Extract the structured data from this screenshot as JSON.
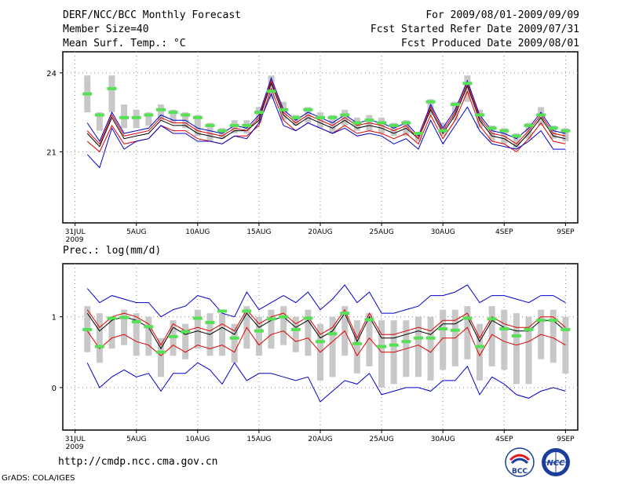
{
  "header": {
    "title": "DERF/NCC/BCC Monthly Forecast",
    "member_size": "Member Size=40",
    "variable": "Mean Surf. Temp.: °C",
    "period": "For 2009/08/01-2009/09/09",
    "started": "Fcst Started Refer Date 2009/07/31",
    "produced": "Fcst Produced Date 2009/08/01"
  },
  "footer": {
    "url": "http://cmdp.ncc.cma.gov.cn",
    "grads": "GrADS: COLA/IGES",
    "logo_bcc": "BCC",
    "logo_ncc": "NCC"
  },
  "colors": {
    "ensemble_max_min": "#0000cc",
    "ensemble_spread": "#dd0000",
    "ensemble_mean": "#000000",
    "box": "#c8c8c8",
    "observed_marker": "#55e055",
    "grid": "#888888"
  },
  "chart_data": [
    {
      "type": "line",
      "title": "Mean Surf. Temp.: °C",
      "xlabel": "",
      "ylabel": "",
      "ylim": [
        18.3,
        24.8
      ],
      "yticks": [
        21,
        24
      ],
      "ytick_labels": [
        "21",
        "24"
      ],
      "x": [
        1,
        2,
        3,
        4,
        5,
        6,
        7,
        8,
        9,
        10,
        11,
        12,
        13,
        14,
        15,
        16,
        17,
        18,
        19,
        20,
        21,
        22,
        23,
        24,
        25,
        26,
        27,
        28,
        29,
        30,
        31,
        32,
        33,
        34,
        35,
        36,
        37,
        38,
        39,
        40
      ],
      "xticks": [
        0,
        5,
        10,
        15,
        20,
        25,
        30,
        35,
        40
      ],
      "xtick_labels": [
        "31JUL\n2009",
        "5AUG",
        "10AUG",
        "15AUG",
        "20AUG",
        "25AUG",
        "30AUG",
        "4SEP",
        "9SEP"
      ],
      "series": [
        {
          "name": "max",
          "values": [
            22.1,
            21.4,
            22.5,
            21.7,
            21.8,
            21.9,
            22.4,
            22.2,
            22.2,
            21.9,
            21.8,
            21.7,
            22.0,
            21.9,
            22.4,
            23.8,
            22.6,
            22.2,
            22.5,
            22.3,
            22.1,
            22.4,
            22.1,
            22.2,
            22.1,
            21.9,
            22.1,
            21.6,
            22.8,
            21.9,
            22.6,
            23.7,
            22.4,
            21.8,
            21.7,
            21.5,
            21.9,
            22.5,
            21.8,
            21.7
          ]
        },
        {
          "name": "mean",
          "values": [
            21.7,
            21.2,
            22.3,
            21.5,
            21.6,
            21.7,
            22.2,
            22.0,
            22.0,
            21.7,
            21.6,
            21.5,
            21.8,
            21.8,
            22.2,
            23.6,
            22.4,
            22.0,
            22.3,
            22.1,
            21.9,
            22.2,
            21.9,
            22.0,
            21.9,
            21.7,
            21.9,
            21.5,
            22.6,
            21.7,
            22.4,
            23.5,
            22.2,
            21.6,
            21.5,
            21.2,
            21.7,
            22.3,
            21.6,
            21.5
          ]
        },
        {
          "name": "spread_upper",
          "values": [
            21.8,
            21.3,
            22.4,
            21.6,
            21.7,
            21.8,
            22.3,
            22.1,
            22.1,
            21.8,
            21.7,
            21.6,
            21.9,
            21.8,
            22.3,
            23.7,
            22.5,
            22.1,
            22.4,
            22.2,
            22.0,
            22.3,
            22.0,
            22.1,
            22.0,
            21.8,
            22.0,
            21.5,
            22.7,
            21.8,
            22.5,
            23.6,
            22.3,
            21.7,
            21.6,
            21.3,
            21.8,
            22.4,
            21.7,
            21.6
          ]
        },
        {
          "name": "spread_lower",
          "values": [
            21.4,
            21.0,
            22.0,
            21.3,
            21.4,
            21.5,
            22.0,
            21.8,
            21.8,
            21.5,
            21.4,
            21.3,
            21.6,
            21.6,
            22.0,
            23.4,
            22.2,
            21.8,
            22.1,
            21.9,
            21.7,
            22.0,
            21.7,
            21.8,
            21.7,
            21.5,
            21.7,
            21.3,
            22.4,
            21.5,
            22.2,
            23.3,
            22.0,
            21.4,
            21.3,
            21.0,
            21.5,
            22.1,
            21.4,
            21.3
          ]
        },
        {
          "name": "min",
          "values": [
            20.9,
            20.4,
            21.9,
            21.1,
            21.4,
            21.5,
            22.0,
            21.7,
            21.7,
            21.4,
            21.4,
            21.3,
            21.6,
            21.5,
            22.1,
            23.2,
            22.0,
            21.8,
            22.1,
            21.9,
            21.7,
            21.9,
            21.6,
            21.7,
            21.6,
            21.3,
            21.5,
            21.1,
            22.2,
            21.3,
            22.0,
            22.7,
            21.8,
            21.3,
            21.2,
            21.1,
            21.4,
            21.8,
            21.1,
            21.1
          ]
        }
      ],
      "boxes": {
        "high": [
          23.9,
          22.5,
          23.9,
          22.8,
          22.6,
          22.5,
          22.8,
          22.6,
          22.5,
          22.4,
          22.1,
          21.9,
          22.2,
          22.2,
          22.7,
          23.9,
          22.9,
          22.4,
          22.7,
          22.5,
          22.4,
          22.6,
          22.3,
          22.4,
          22.3,
          22.1,
          22.2,
          21.7,
          23.0,
          22.1,
          22.9,
          23.9,
          22.6,
          22.0,
          21.9,
          21.7,
          22.1,
          22.7,
          22.0,
          21.9
        ],
        "low": [
          22.5,
          21.8,
          22.5,
          21.9,
          21.9,
          22.0,
          22.2,
          22.1,
          21.9,
          21.6,
          21.4,
          21.5,
          21.7,
          21.7,
          22.1,
          23.0,
          22.2,
          22.0,
          22.1,
          21.9,
          21.7,
          22.0,
          21.8,
          21.8,
          21.7,
          21.6,
          21.6,
          21.4,
          22.4,
          21.6,
          22.2,
          22.9,
          21.9,
          21.4,
          21.3,
          21.1,
          21.5,
          22.0,
          21.5,
          21.4
        ]
      },
      "observed": [
        23.2,
        22.4,
        23.4,
        22.3,
        22.3,
        22.4,
        22.6,
        22.5,
        22.4,
        22.3,
        22.0,
        21.8,
        22.0,
        22.0,
        22.5,
        23.3,
        22.6,
        22.3,
        22.6,
        22.3,
        22.3,
        22.4,
        22.1,
        22.2,
        22.1,
        22.0,
        22.1,
        21.7,
        22.9,
        21.8,
        22.8,
        23.6,
        22.4,
        21.9,
        21.8,
        21.6,
        22.0,
        22.4,
        21.9,
        21.8
      ]
    },
    {
      "type": "line",
      "title": "Prec.: log(mm/d)",
      "xlabel": "",
      "ylabel": "",
      "ylim": [
        -0.6,
        1.75
      ],
      "yticks": [
        0,
        1
      ],
      "ytick_labels": [
        "0",
        "1"
      ],
      "x": [
        1,
        2,
        3,
        4,
        5,
        6,
        7,
        8,
        9,
        10,
        11,
        12,
        13,
        14,
        15,
        16,
        17,
        18,
        19,
        20,
        21,
        22,
        23,
        24,
        25,
        26,
        27,
        28,
        29,
        30,
        31,
        32,
        33,
        34,
        35,
        36,
        37,
        38,
        39,
        40
      ],
      "xticks": [
        0,
        5,
        10,
        15,
        20,
        25,
        30,
        35,
        40
      ],
      "xtick_labels": [
        "31JUL\n2009",
        "5AUG",
        "10AUG",
        "15AUG",
        "20AUG",
        "25AUG",
        "30AUG",
        "4SEP",
        "9SEP"
      ],
      "series": [
        {
          "name": "max",
          "values": [
            1.4,
            1.2,
            1.3,
            1.25,
            1.2,
            1.2,
            1.0,
            1.1,
            1.15,
            1.3,
            1.25,
            1.05,
            1.0,
            1.35,
            1.1,
            1.2,
            1.3,
            1.2,
            1.35,
            1.1,
            1.25,
            1.45,
            1.2,
            1.35,
            1.05,
            1.05,
            1.1,
            1.15,
            1.3,
            1.3,
            1.35,
            1.45,
            1.2,
            1.3,
            1.3,
            1.25,
            1.2,
            1.3,
            1.3,
            1.2
          ]
        },
        {
          "name": "mean",
          "values": [
            1.05,
            0.8,
            0.95,
            1.0,
            0.95,
            0.85,
            0.55,
            0.85,
            0.75,
            0.8,
            0.75,
            0.85,
            0.75,
            1.05,
            0.85,
            0.95,
            1.0,
            0.85,
            0.95,
            0.7,
            0.8,
            1.05,
            0.65,
            1.0,
            0.7,
            0.7,
            0.75,
            0.8,
            0.75,
            0.9,
            0.9,
            1.0,
            0.65,
            0.95,
            0.85,
            0.8,
            0.8,
            0.95,
            0.95,
            0.8
          ]
        },
        {
          "name": "spread_upper",
          "values": [
            1.1,
            0.85,
            1.0,
            1.05,
            1.0,
            0.9,
            0.6,
            0.9,
            0.8,
            0.85,
            0.8,
            0.9,
            0.8,
            1.1,
            0.9,
            1.0,
            1.05,
            0.9,
            1.0,
            0.75,
            0.85,
            1.1,
            0.7,
            1.05,
            0.75,
            0.75,
            0.8,
            0.85,
            0.8,
            0.95,
            0.95,
            1.05,
            0.7,
            1.0,
            0.9,
            0.85,
            0.85,
            1.0,
            1.0,
            0.85
          ]
        },
        {
          "name": "spread_lower",
          "values": [
            0.8,
            0.55,
            0.7,
            0.75,
            0.65,
            0.6,
            0.45,
            0.6,
            0.5,
            0.6,
            0.55,
            0.6,
            0.5,
            0.85,
            0.6,
            0.75,
            0.8,
            0.65,
            0.7,
            0.5,
            0.65,
            0.8,
            0.45,
            0.7,
            0.5,
            0.5,
            0.55,
            0.6,
            0.5,
            0.7,
            0.7,
            0.85,
            0.45,
            0.75,
            0.65,
            0.6,
            0.65,
            0.75,
            0.7,
            0.6
          ]
        },
        {
          "name": "min",
          "values": [
            0.35,
            0.0,
            0.15,
            0.25,
            0.15,
            0.2,
            -0.05,
            0.2,
            0.2,
            0.35,
            0.25,
            0.05,
            0.35,
            0.1,
            0.2,
            0.2,
            0.15,
            0.1,
            0.15,
            -0.2,
            -0.05,
            0.1,
            0.05,
            0.2,
            -0.1,
            -0.05,
            0.0,
            0.0,
            -0.05,
            0.1,
            0.1,
            0.3,
            -0.1,
            0.15,
            0.05,
            -0.1,
            -0.15,
            -0.05,
            0.0,
            -0.05
          ]
        }
      ],
      "boxes": {
        "high": [
          1.15,
          1.05,
          1.0,
          1.1,
          1.05,
          1.0,
          0.7,
          0.95,
          0.9,
          1.1,
          1.05,
          1.05,
          0.9,
          1.15,
          1.0,
          1.1,
          1.15,
          1.0,
          1.1,
          0.9,
          1.0,
          1.15,
          0.95,
          1.05,
          0.95,
          0.95,
          0.95,
          1.0,
          1.0,
          1.1,
          1.1,
          1.15,
          0.9,
          1.15,
          1.1,
          1.05,
          1.0,
          1.1,
          1.1,
          1.0
        ],
        "low": [
          0.5,
          0.35,
          0.55,
          0.6,
          0.45,
          0.45,
          0.15,
          0.45,
          0.4,
          0.55,
          0.45,
          0.45,
          0.35,
          0.55,
          0.45,
          0.55,
          0.6,
          0.5,
          0.45,
          0.1,
          0.15,
          0.45,
          0.2,
          0.3,
          0.0,
          0.05,
          0.15,
          0.15,
          0.1,
          0.25,
          0.3,
          0.4,
          0.1,
          0.3,
          0.25,
          0.05,
          0.05,
          0.4,
          0.35,
          0.2
        ]
      },
      "observed": [
        0.82,
        0.58,
        0.98,
        0.99,
        0.93,
        0.86,
        0.5,
        0.72,
        0.79,
        0.98,
        0.92,
        1.08,
        0.7,
        1.08,
        0.8,
        0.97,
        1.0,
        0.82,
        0.98,
        0.65,
        0.76,
        1.05,
        0.62,
        0.96,
        0.58,
        0.6,
        0.65,
        0.7,
        0.7,
        0.83,
        0.81,
        0.98,
        0.58,
        0.97,
        0.83,
        0.73,
        0.82,
        0.95,
        0.95,
        0.82
      ]
    }
  ]
}
